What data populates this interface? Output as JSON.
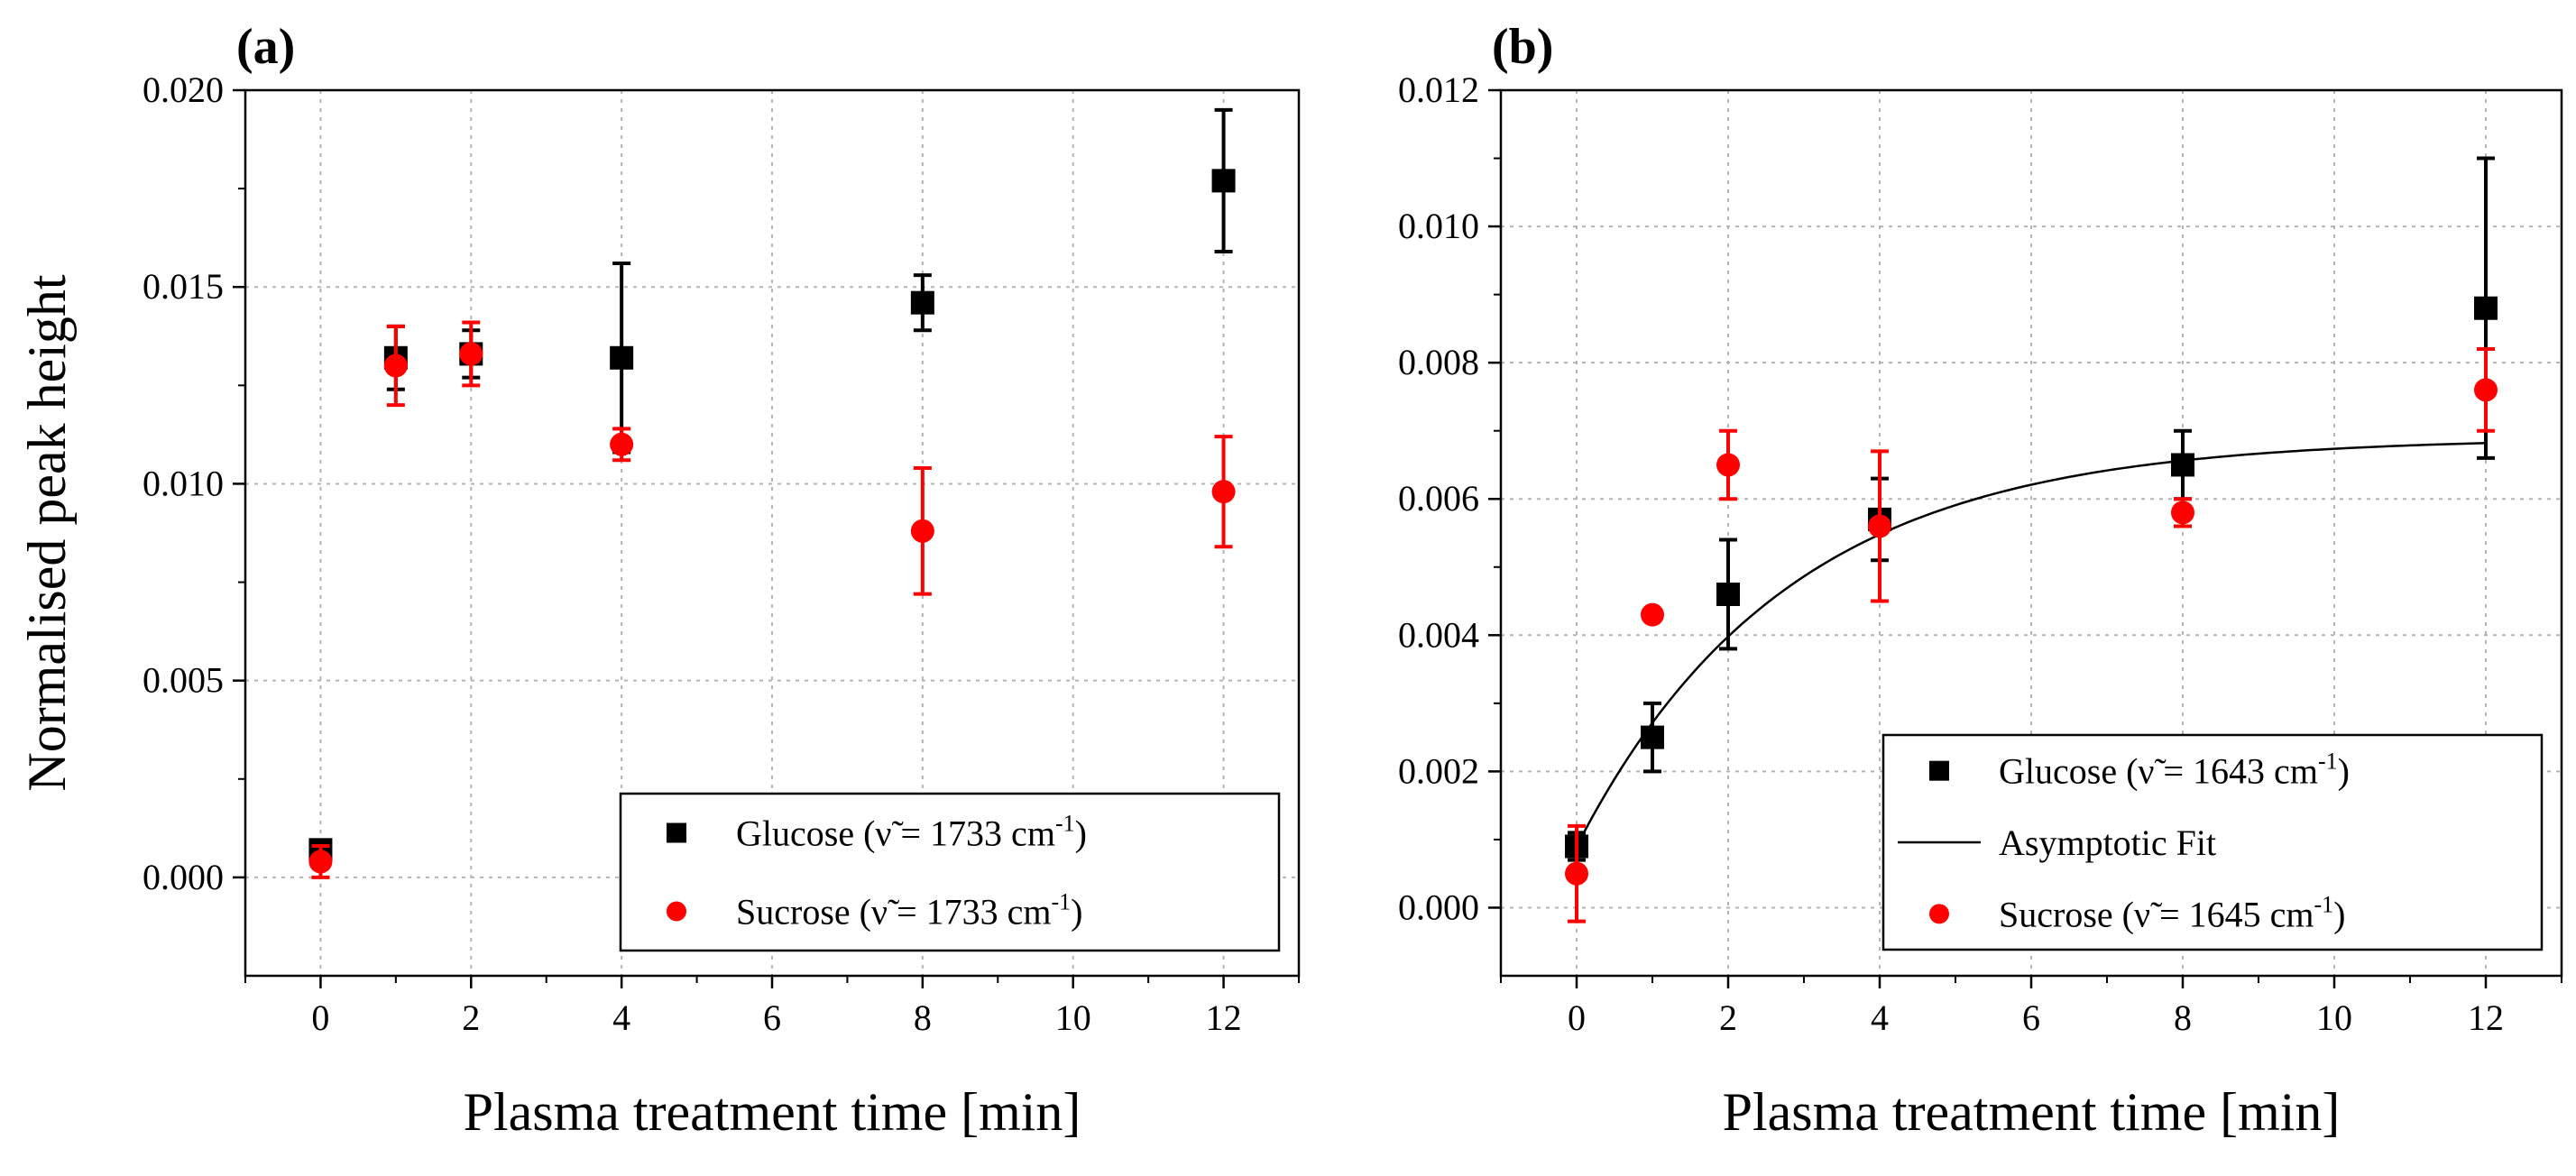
{
  "chart_data": [
    {
      "type": "scatter",
      "panel_label": "(a)",
      "xlabel": "Plasma treatment time [min]",
      "ylabel": "Normalised peak height",
      "xlim": [
        -1,
        13
      ],
      "ylim": [
        -0.0025,
        0.02
      ],
      "xticks": [
        0,
        2,
        4,
        6,
        8,
        10,
        12
      ],
      "xtick_labels": [
        "0",
        "2",
        "4",
        "6",
        "8",
        "10",
        "12"
      ],
      "yticks": [
        0.0,
        0.005,
        0.01,
        0.015,
        0.02
      ],
      "ytick_labels": [
        "0.000",
        "0.005",
        "0.010",
        "0.015",
        "0.020"
      ],
      "grid": true,
      "legend_position": "bottom-right",
      "series": [
        {
          "name": "Glucose",
          "legend_prefix": "Glucose (",
          "legend_symbol": "ν̃",
          "legend_value": " = 1733 cm",
          "legend_exponent": "-1",
          "legend_suffix": ")",
          "marker": "square",
          "color": "#000000",
          "x": [
            0,
            1,
            2,
            4,
            8,
            12
          ],
          "y": [
            0.0007,
            0.0132,
            0.0133,
            0.0132,
            0.0146,
            0.0177
          ],
          "err": [
            0.0002,
            0.0008,
            0.0006,
            0.0024,
            0.0007,
            0.0018
          ]
        },
        {
          "name": "Sucrose",
          "legend_prefix": "Sucrose (",
          "legend_symbol": "ν̃",
          "legend_value": " = 1733 cm",
          "legend_exponent": "-1",
          "legend_suffix": ")",
          "marker": "circle",
          "color": "#ff0000",
          "x": [
            0,
            1,
            2,
            4,
            8,
            12
          ],
          "y": [
            0.0004,
            0.013,
            0.0133,
            0.011,
            0.0088,
            0.0098
          ],
          "err": [
            0.0004,
            0.001,
            0.0008,
            0.0004,
            0.0016,
            0.0014
          ]
        }
      ]
    },
    {
      "type": "scatter",
      "panel_label": "(b)",
      "xlabel": "Plasma treatment time [min]",
      "ylabel": "",
      "xlim": [
        -1,
        13
      ],
      "ylim": [
        -0.001,
        0.012
      ],
      "xticks": [
        0,
        2,
        4,
        6,
        8,
        10,
        12
      ],
      "xtick_labels": [
        "0",
        "2",
        "4",
        "6",
        "8",
        "10",
        "12"
      ],
      "yticks": [
        0.0,
        0.002,
        0.004,
        0.006,
        0.008,
        0.01,
        0.012
      ],
      "ytick_labels": [
        "0.000",
        "0.002",
        "0.004",
        "0.006",
        "0.008",
        "0.010",
        "0.012"
      ],
      "grid": true,
      "legend_position": "bottom-right",
      "series": [
        {
          "name": "Glucose",
          "legend_prefix": "Glucose (",
          "legend_symbol": "ν̃",
          "legend_value": " = 1643 cm",
          "legend_exponent": "-1",
          "legend_suffix": ")",
          "marker": "square",
          "color": "#000000",
          "x": [
            0,
            1,
            2,
            4,
            8,
            12
          ],
          "y": [
            0.0009,
            0.0025,
            0.0046,
            0.0057,
            0.0065,
            0.0088
          ],
          "err": [
            0.0002,
            0.0005,
            0.0008,
            0.0006,
            0.0005,
            0.0022
          ]
        },
        {
          "name": "Asymptotic Fit",
          "legend_label": "Asymptotic Fit",
          "type": "line",
          "color": "#000000",
          "model": "y = a - b*exp(-k*x)",
          "params": {
            "a": 0.0069,
            "b": 0.006,
            "k": 0.36
          },
          "x_range": [
            0,
            12
          ]
        },
        {
          "name": "Sucrose",
          "legend_prefix": "Sucrose (",
          "legend_symbol": "ν̃",
          "legend_value": " = 1645 cm",
          "legend_exponent": "-1",
          "legend_suffix": ")",
          "marker": "circle",
          "color": "#ff0000",
          "x": [
            0,
            1,
            2,
            4,
            8,
            12
          ],
          "y": [
            0.0005,
            0.0043,
            0.0065,
            0.0056,
            0.0058,
            0.0076
          ],
          "err": [
            0.0007,
            0.0,
            0.0005,
            0.0011,
            0.0002,
            0.0006
          ]
        }
      ]
    }
  ]
}
